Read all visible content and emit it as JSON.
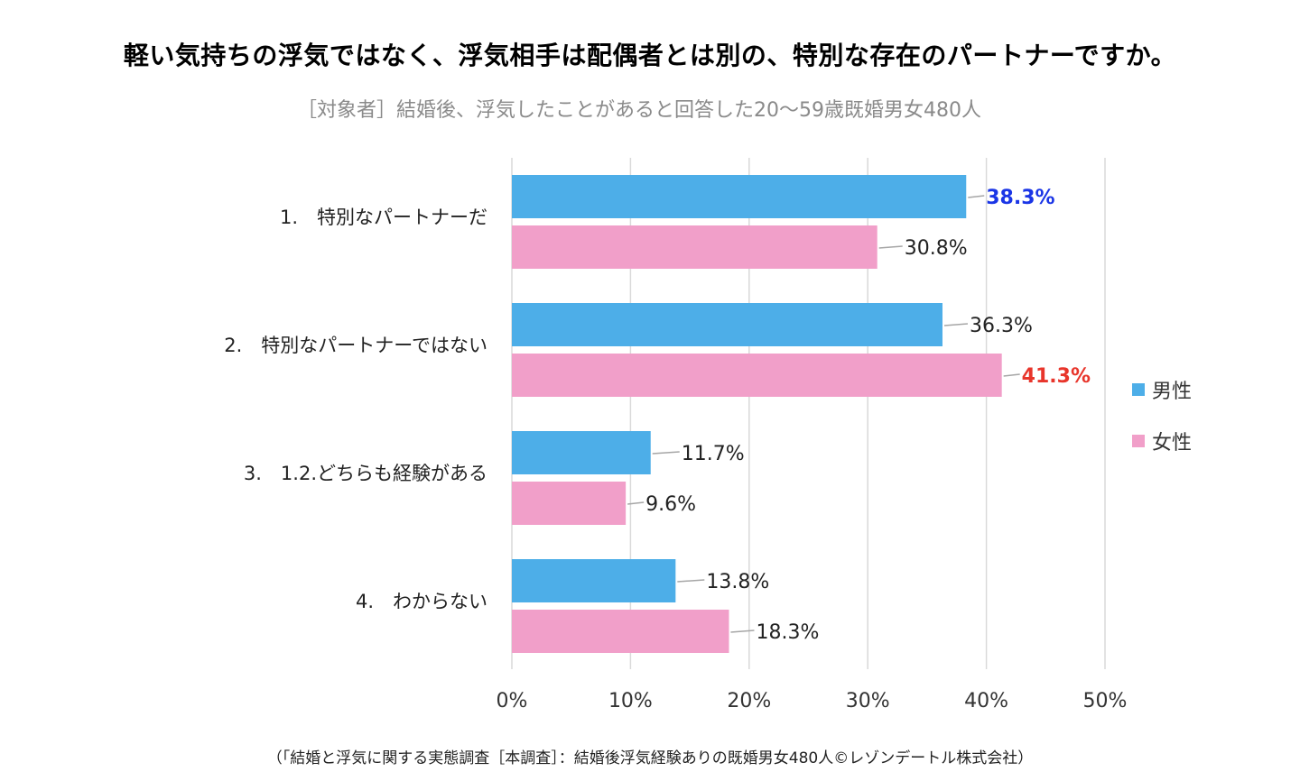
{
  "title": "軽い気持ちの浮気ではなく、浮気相手は配偶者とは別の、特別な存在のパートナーですか。",
  "subtitle": "［対象者］結婚後、浮気したことがあると回答した20～59歳既婚男女480人",
  "footnote": "（「結婚と浮気に関する実態調査［本調査］：結婚後浮気経験ありの既婚男女480人©レゾンデートル株式会社）",
  "colors": {
    "male": "#4daee8",
    "female": "#f19fc9",
    "highlight_male": "#1a35e6",
    "highlight_female": "#e8352b",
    "grid": "#d9d9d9",
    "label": "#222222",
    "leader": "#a6a6a6"
  },
  "chart_data": {
    "type": "bar",
    "orientation": "horizontal",
    "title": "軽い気持ちの浮気ではなく、浮気相手は配偶者とは別の、特別な存在のパートナーですか。",
    "subtitle": "［対象者］結婚後、浮気したことがあると回答した20～59歳既婚男女480人",
    "xlabel": "",
    "ylabel": "",
    "xlim": [
      0,
      50
    ],
    "x_ticks": [
      0,
      10,
      20,
      30,
      40,
      50
    ],
    "x_tick_labels": [
      "0%",
      "10%",
      "20%",
      "30%",
      "40%",
      "50%"
    ],
    "grid": "vertical",
    "legend_position": "right",
    "categories": [
      "1.　特別なパートナーだ",
      "2.　特別なパートナーではない",
      "3.　1.2.どちらも経験がある",
      "4.　わからない"
    ],
    "series": [
      {
        "name": "男性",
        "color": "#4daee8",
        "values": [
          38.3,
          36.3,
          11.7,
          13.8
        ],
        "labels": [
          "38.3%",
          "36.3%",
          "11.7%",
          "13.8%"
        ],
        "highlight": [
          true,
          false,
          false,
          false
        ]
      },
      {
        "name": "女性",
        "color": "#f19fc9",
        "values": [
          30.8,
          41.3,
          9.6,
          18.3
        ],
        "labels": [
          "30.8%",
          "41.3%",
          "9.6%",
          "18.3%"
        ],
        "highlight": [
          false,
          true,
          false,
          false
        ]
      }
    ]
  },
  "legend": [
    {
      "label": "男性",
      "color": "#4daee8"
    },
    {
      "label": "女性",
      "color": "#f19fc9"
    }
  ]
}
